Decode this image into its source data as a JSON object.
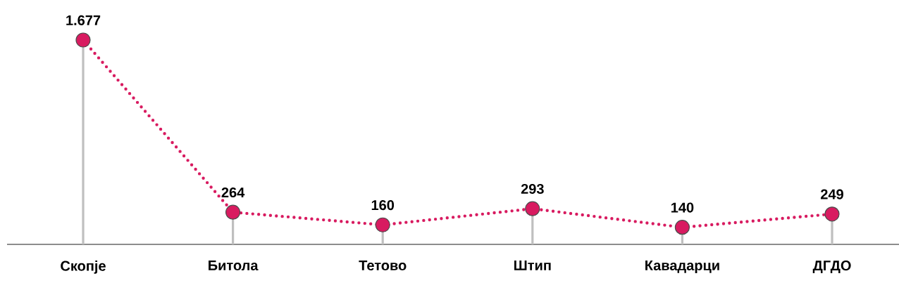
{
  "chart_data": {
    "type": "line",
    "categories": [
      "Скопје",
      "Битола",
      "Тетово",
      "Штип",
      "Кавадарци",
      "ДГДО"
    ],
    "values": [
      1677,
      264,
      160,
      293,
      140,
      249
    ],
    "value_labels": [
      "1.677",
      "264",
      "160",
      "293",
      "140",
      "249"
    ],
    "color": "#d81b60",
    "marker": "circle",
    "line_style": "dotted"
  }
}
